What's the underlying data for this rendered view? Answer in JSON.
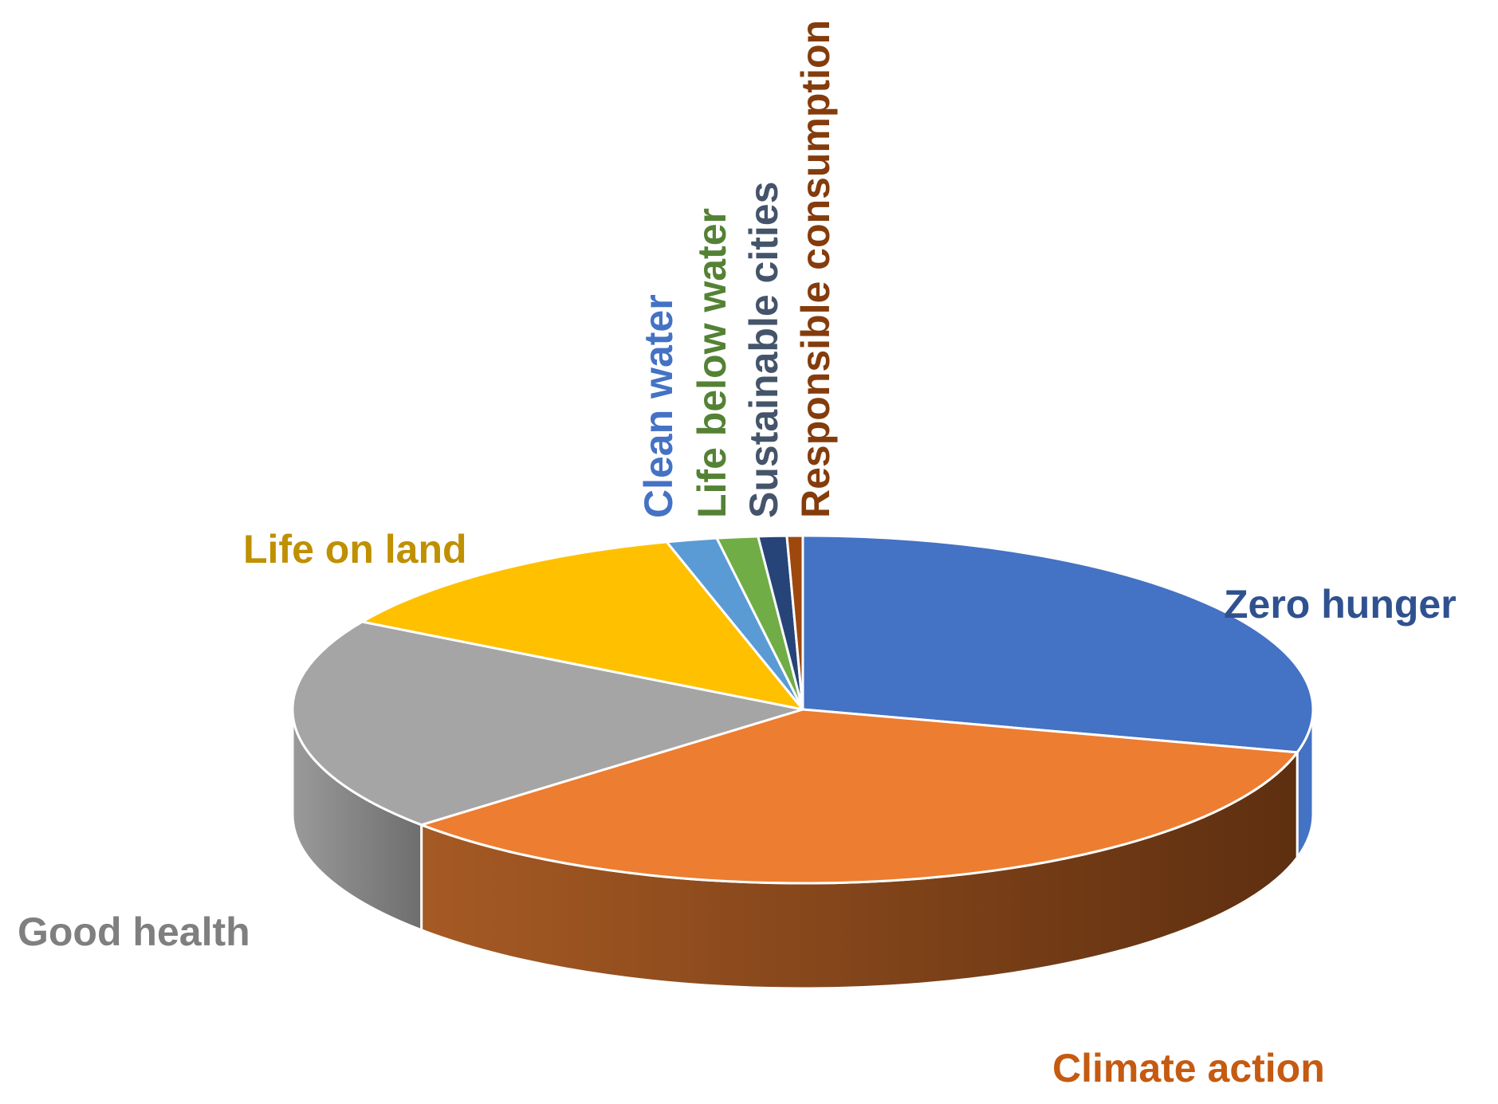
{
  "chart_data": {
    "type": "pie",
    "title": "",
    "style": "3d",
    "slices": [
      {
        "label": "Zero hunger",
        "value": 29.0,
        "color": "#4472C4",
        "label_color": "#2F528F"
      },
      {
        "label": "Climate action",
        "value": 34.5,
        "color": "#ED7D31",
        "label_color": "#C55A11"
      },
      {
        "label": "Good health",
        "value": 20.0,
        "color": "#A5A5A5",
        "label_color": "#7F7F7F"
      },
      {
        "label": "Life on land",
        "value": 12.3,
        "color": "#FFC000",
        "label_color": "#BF9000"
      },
      {
        "label": "Clean water",
        "value": 1.6,
        "color": "#5B9BD5",
        "label_color": "#4472C4"
      },
      {
        "label": "Life below water",
        "value": 1.3,
        "color": "#70AD47",
        "label_color": "#548235"
      },
      {
        "label": "Sustainable cities",
        "value": 0.9,
        "color": "#264478",
        "label_color": "#44546A"
      },
      {
        "label": "Responsible consumption",
        "value": 0.5,
        "color": "#9E480E",
        "label_color": "#843C0C"
      }
    ]
  }
}
